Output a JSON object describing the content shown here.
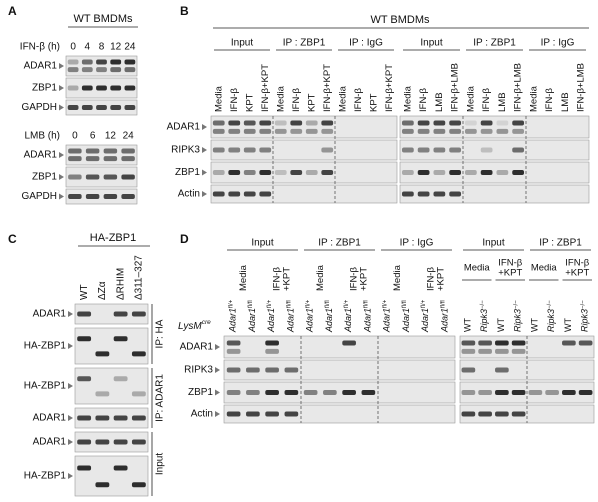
{
  "panel_a": {
    "label": "A",
    "header": "WT BMDMs",
    "blots": [
      {
        "treatment": "IFN-β (h)",
        "lanes": [
          "0",
          "4",
          "8",
          "12",
          "24"
        ],
        "rows": [
          "ADAR1",
          "ZBP1",
          "GAPDH"
        ]
      },
      {
        "treatment": "LMB (h)",
        "lanes": [
          "0",
          "6",
          "12",
          "24"
        ],
        "rows": [
          "ADAR1",
          "ZBP1",
          "GAPDH"
        ]
      }
    ]
  },
  "panel_b": {
    "label": "B",
    "header": "WT BMDMs",
    "groups": [
      "Input",
      "IP : ZBP1",
      "IP : IgG",
      "Input",
      "IP : ZBP1",
      "IP : IgG"
    ],
    "lanes": [
      "Media",
      "IFN-β",
      "KPT",
      "IFN-β+KPT",
      "Media",
      "IFN-β",
      "KPT",
      "IFN-β+KPT",
      "Media",
      "IFN-β",
      "KPT",
      "IFN-β+KPT",
      "Media",
      "IFN-β",
      "LMB",
      "IFN-β+LMB",
      "Media",
      "IFN-β",
      "LMB",
      "IFN-β+LMB",
      "Media",
      "IFN-β",
      "LMB",
      "IFN-β+LMB"
    ],
    "rows": [
      "ADAR1",
      "RIPK3",
      "ZBP1",
      "Actin"
    ]
  },
  "panel_c": {
    "label": "C",
    "header": "HA-ZBP1",
    "lanes": [
      "WT",
      "ΔZα",
      "ΔRHIM",
      "Δ311–327"
    ],
    "rows": [
      "ADAR1",
      "HA-ZBP1",
      "HA-ZBP1",
      "ADAR1",
      "ADAR1",
      "HA-ZBP1"
    ],
    "sections": [
      "IP: HA",
      "IP: ADAR1",
      "Input"
    ]
  },
  "panel_d": {
    "label": "D",
    "groups": [
      "Input",
      "IP : ZBP1",
      "IP : IgG",
      "Input",
      "IP : ZBP1"
    ],
    "treatments": [
      [
        "Media"
      ],
      [
        "IFN-β",
        "+KPT"
      ],
      [
        "Media"
      ],
      [
        "IFN-β",
        "+KPT"
      ],
      [
        "Media"
      ],
      [
        "IFN-β",
        "+KPT"
      ],
      [
        "Media"
      ],
      [
        "IFN-β",
        "+KPT"
      ],
      [
        "Media"
      ],
      [
        "IFN-β",
        "+KPT"
      ]
    ],
    "genotype_label": {
      "text": "LysM",
      "sup": "cre"
    },
    "genotypes": [
      {
        "gene": "Adar1",
        "sup": "fl/+"
      },
      {
        "gene": "Adar1",
        "sup": "fl/fl"
      },
      {
        "gene": "Adar1",
        "sup": "fl/+"
      },
      {
        "gene": "Adar1",
        "sup": "fl/fl"
      },
      {
        "gene": "Adar1",
        "sup": "fl/+"
      },
      {
        "gene": "Adar1",
        "sup": "fl/fl"
      },
      {
        "gene": "Adar1",
        "sup": "fl/+"
      },
      {
        "gene": "Adar1",
        "sup": "fl/fl"
      },
      {
        "gene": "Adar1",
        "sup": "fl/+"
      },
      {
        "gene": "Adar1",
        "sup": "fl/fl"
      },
      {
        "gene": "Adar1",
        "sup": "fl/+"
      },
      {
        "gene": "Adar1",
        "sup": "fl/fl"
      },
      {
        "gene": "WT"
      },
      {
        "gene": "Ripk3",
        "sup": "−/−"
      },
      {
        "gene": "WT"
      },
      {
        "gene": "Ripk3",
        "sup": "−/−"
      },
      {
        "gene": "WT"
      },
      {
        "gene": "Ripk3",
        "sup": "−/−"
      },
      {
        "gene": "WT"
      },
      {
        "gene": "Ripk3",
        "sup": "−/−"
      }
    ],
    "rows": [
      "ADAR1",
      "RIPK3",
      "ZBP1",
      "Actin"
    ]
  }
}
